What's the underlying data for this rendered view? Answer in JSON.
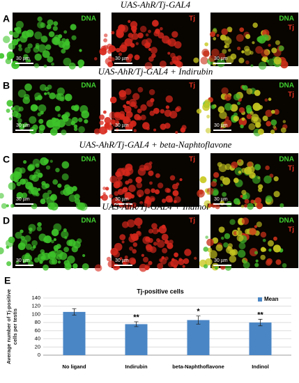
{
  "panels": [
    {
      "letter": "A",
      "title": "UAS-AhR/Tj-GAL4",
      "images": [
        {
          "labels": [
            "DNA"
          ],
          "scale": "30 µm"
        },
        {
          "labels": [
            "Tj"
          ],
          "scale": "30 µm"
        },
        {
          "labels": [
            "DNA",
            "Tj"
          ],
          "scale": "30 µm"
        }
      ]
    },
    {
      "letter": "B",
      "title": "UAS-AhR/Tj-GAL4 + Indirubin",
      "images": [
        {
          "labels": [
            "DNA"
          ],
          "scale": "30 µm"
        },
        {
          "labels": [
            "Tj"
          ],
          "scale": "30 µm"
        },
        {
          "labels": [
            "DNA",
            "Tj"
          ],
          "scale": "30 µm"
        }
      ]
    },
    {
      "letter": "C",
      "title": "UAS-AhR/Tj-GAL4 + beta-Naphtoflavone",
      "images": [
        {
          "labels": [
            "DNA"
          ],
          "scale": "30 µm"
        },
        {
          "labels": [
            "Tj"
          ],
          "scale": "30 µm"
        },
        {
          "labels": [
            "DNA",
            "Tj"
          ],
          "scale": "30 µm"
        }
      ]
    },
    {
      "letter": "D",
      "title": "UAS-AhR/Tj-GAL4 + Indinol",
      "images": [
        {
          "labels": [
            "DNA"
          ],
          "scale": "30 µm"
        },
        {
          "labels": [
            "Tj"
          ],
          "scale": "30 µm"
        },
        {
          "labels": [
            "DNA",
            "Tj"
          ],
          "scale": "30 µm"
        }
      ]
    }
  ],
  "chart_letter": "E",
  "chart_data": {
    "type": "bar",
    "title": "Tj-positive cells",
    "y_label": "Average number of Tj-positive cells per testis",
    "categories": [
      "No ligand",
      "Indirubin",
      "beta-Naphthoflavone",
      "Indinol"
    ],
    "series": [
      {
        "name": "Mean",
        "color": "#4a86c5",
        "values": [
          106,
          76,
          86,
          80
        ],
        "errors": [
          8,
          6,
          10,
          8
        ]
      }
    ],
    "significance": [
      null,
      "**",
      "*",
      "**"
    ],
    "ylim": [
      0,
      140
    ],
    "yticks": [
      0,
      20,
      40,
      60,
      80,
      100,
      120,
      140
    ],
    "grid": true,
    "legend": "upper right"
  }
}
